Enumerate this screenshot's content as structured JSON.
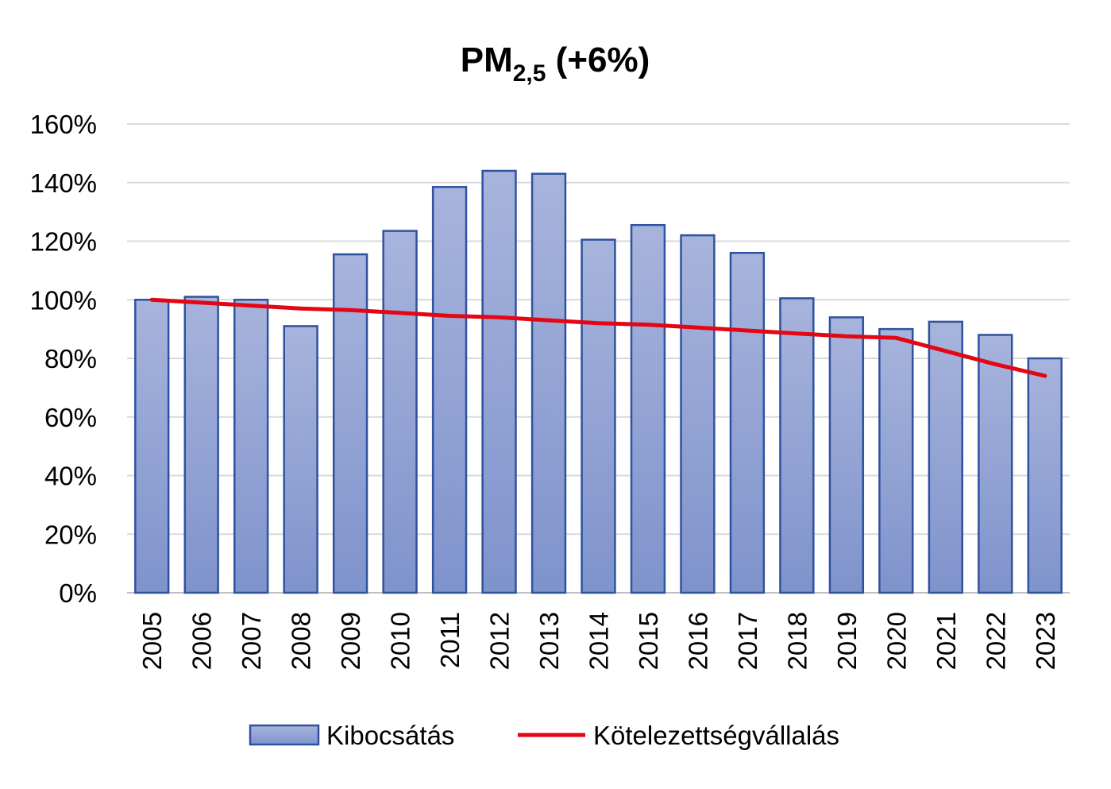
{
  "chart_data": {
    "type": "bar",
    "title": {
      "main": "PM",
      "subscript": "2,5",
      "suffix": " (+6%)"
    },
    "xlabel": "",
    "ylabel": "",
    "ylim": [
      0,
      1.6
    ],
    "y_ticks": [
      "0%",
      "20%",
      "40%",
      "60%",
      "80%",
      "100%",
      "120%",
      "140%",
      "160%"
    ],
    "grid": true,
    "legend_position": "bottom",
    "categories": [
      "2005",
      "2006",
      "2007",
      "2008",
      "2009",
      "2010",
      "2011",
      "2012",
      "2013",
      "2014",
      "2015",
      "2016",
      "2017",
      "2018",
      "2019",
      "2020",
      "2021",
      "2022",
      "2023"
    ],
    "series": [
      {
        "name": "Kibocsátás",
        "type": "bar",
        "color": "#8ea0d4",
        "values": [
          1.0,
          1.01,
          1.0,
          0.91,
          1.155,
          1.235,
          1.385,
          1.44,
          1.43,
          1.205,
          1.255,
          1.22,
          1.16,
          1.005,
          0.94,
          0.9,
          0.925,
          0.88,
          0.8
        ]
      },
      {
        "name": "Kötelezettségvállalás",
        "type": "line",
        "color": "#e30613",
        "values": [
          1.0,
          0.99,
          0.98,
          0.97,
          0.965,
          0.955,
          0.945,
          0.94,
          0.93,
          0.92,
          0.915,
          0.905,
          0.895,
          0.885,
          0.875,
          0.87,
          0.825,
          0.78,
          0.74
        ]
      }
    ]
  }
}
